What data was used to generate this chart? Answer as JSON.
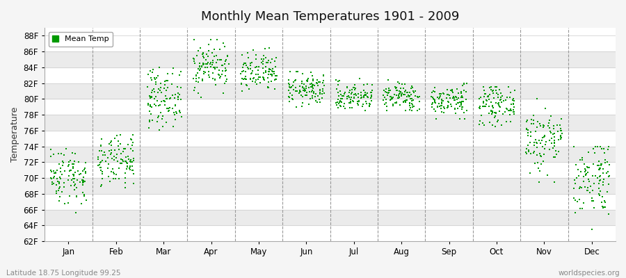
{
  "title": "Monthly Mean Temperatures 1901 - 2009",
  "ylabel": "Temperature",
  "xlabel_bottom": "Latitude 18.75 Longitude 99.25",
  "watermark": "worldspecies.org",
  "legend_label": "Mean Temp",
  "dot_color": "#009900",
  "background_color": "#f5f5f5",
  "plot_bg_color": "#ffffff",
  "stripe_color": "#ebebeb",
  "grid_color": "#999999",
  "ylim": [
    62,
    89
  ],
  "ytick_labels": [
    "62F",
    "64F",
    "66F",
    "68F",
    "70F",
    "72F",
    "74F",
    "76F",
    "78F",
    "80F",
    "82F",
    "84F",
    "86F",
    "88F"
  ],
  "ytick_values": [
    62,
    64,
    66,
    68,
    70,
    72,
    74,
    76,
    78,
    80,
    82,
    84,
    86,
    88
  ],
  "months": [
    "Jan",
    "Feb",
    "Mar",
    "Apr",
    "May",
    "Jun",
    "Jul",
    "Aug",
    "Sep",
    "Oct",
    "Nov",
    "Dec"
  ],
  "num_years": 109,
  "seed": 42,
  "monthly_mean_temps": [
    70.3,
    72.0,
    80.2,
    84.2,
    83.2,
    81.2,
    80.3,
    80.3,
    79.8,
    79.3,
    74.8,
    70.2
  ],
  "monthly_std": [
    1.8,
    1.6,
    1.8,
    1.5,
    1.3,
    1.0,
    0.9,
    0.9,
    1.0,
    1.2,
    2.2,
    2.5
  ],
  "monthly_min": [
    64.5,
    68.5,
    75.5,
    80.0,
    80.0,
    79.0,
    78.5,
    78.5,
    77.5,
    76.5,
    69.5,
    63.5
  ],
  "monthly_max": [
    74.0,
    75.5,
    84.0,
    87.5,
    86.5,
    83.5,
    83.0,
    82.5,
    82.0,
    81.5,
    80.0,
    74.0
  ],
  "dot_size": 3,
  "title_fontsize": 13,
  "axis_fontsize": 8.5,
  "ylabel_fontsize": 9
}
